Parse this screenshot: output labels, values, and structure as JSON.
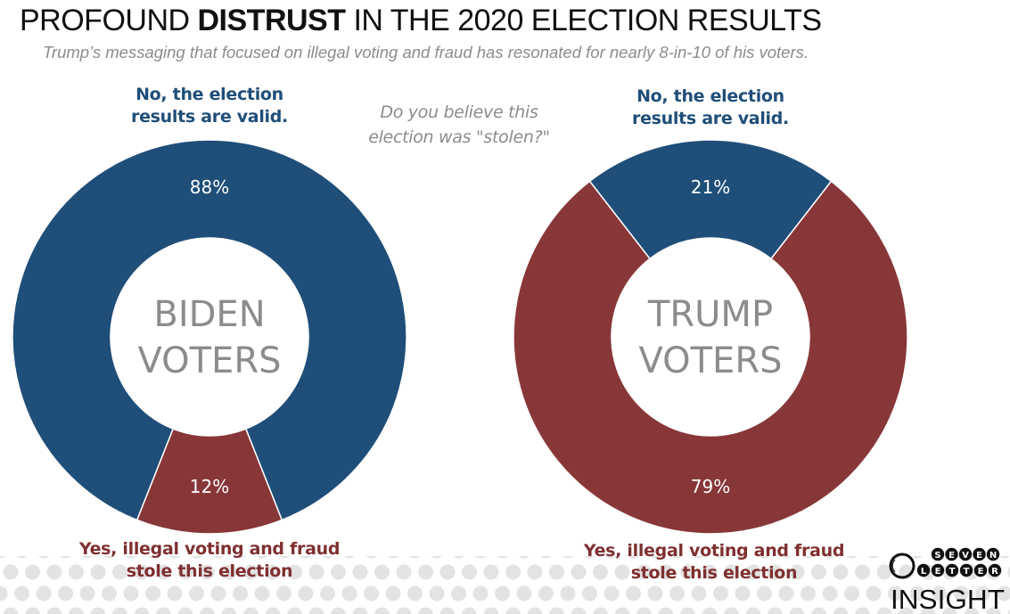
{
  "header": {
    "title_pre": "PROFOUND ",
    "title_bold": "DISTRUST",
    "title_post": " IN THE 2020 ELECTION RESULTS",
    "subtitle": "Trump’s messaging that focused on illegal voting and fraud has resonated for nearly 8-in-10 of his voters."
  },
  "question": {
    "line1": "Do you believe this",
    "line2": "election was \"stolen?\""
  },
  "labels": {
    "no_line1": "No, the election",
    "no_line2": "results are valid.",
    "yes_line1": "Yes, illegal voting and fraud",
    "yes_line2": "stole this election"
  },
  "colors": {
    "blue": "#1f4e79",
    "red": "#883739",
    "center_text": "#8c8c8c",
    "dots": "#e3e3e3"
  },
  "logo": {
    "row1": [
      "S",
      "E",
      "V",
      "E",
      "N"
    ],
    "row2": [
      "L",
      "E",
      "T",
      "T",
      "E",
      "R"
    ],
    "word": "INSIGHT"
  },
  "chart_data": [
    {
      "type": "pie",
      "variant": "donut",
      "title": "BIDEN VOTERS",
      "center_line1": "BIDEN",
      "center_line2": "VOTERS",
      "slices": [
        {
          "name": "No, the election results are valid.",
          "value": 88,
          "label": "88%",
          "color": "#1f4e79"
        },
        {
          "name": "Yes, illegal voting and fraud stole this election",
          "value": 12,
          "label": "12%",
          "color": "#883739"
        }
      ]
    },
    {
      "type": "pie",
      "variant": "donut",
      "title": "TRUMP VOTERS",
      "center_line1": "TRUMP",
      "center_line2": "VOTERS",
      "slices": [
        {
          "name": "No, the election results are valid.",
          "value": 21,
          "label": "21%",
          "color": "#1f4e79"
        },
        {
          "name": "Yes, illegal voting and fraud stole this election",
          "value": 79,
          "label": "79%",
          "color": "#883739"
        }
      ]
    }
  ]
}
